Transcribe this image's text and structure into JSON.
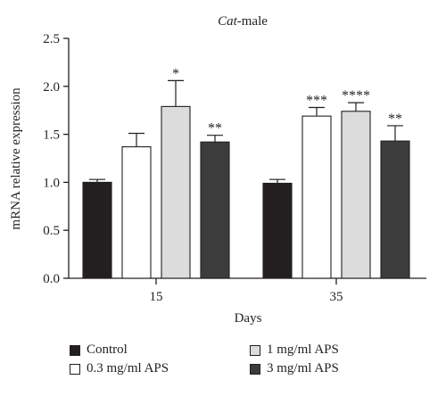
{
  "chart_data": {
    "type": "bar",
    "title_italic": "Cat",
    "title_rest": "-male",
    "xlabel": "Days",
    "ylabel": "mRNA relative expression",
    "ylim": [
      0,
      2.5
    ],
    "yticks": [
      "0.0",
      "0.5",
      "1.0",
      "1.5",
      "2.0",
      "2.5"
    ],
    "categories": [
      "15",
      "35"
    ],
    "series": [
      {
        "name": "Control",
        "color": "#231f20",
        "values": [
          1.0,
          0.99
        ],
        "errors": [
          0.03,
          0.04
        ],
        "sig": [
          "",
          ""
        ]
      },
      {
        "name": "0.3 mg/ml APS",
        "color": "#ffffff",
        "values": [
          1.37,
          1.69
        ],
        "errors": [
          0.14,
          0.09
        ],
        "sig": [
          "",
          "***"
        ]
      },
      {
        "name": "1 mg/ml APS",
        "color": "#dcdcdc",
        "values": [
          1.79,
          1.74
        ],
        "errors": [
          0.27,
          0.09
        ],
        "sig": [
          "*",
          "****"
        ]
      },
      {
        "name": "3 mg/ml APS",
        "color": "#3c3c3c",
        "values": [
          1.42,
          1.43
        ],
        "errors": [
          0.07,
          0.16
        ],
        "sig": [
          "**",
          "**"
        ]
      }
    ]
  }
}
